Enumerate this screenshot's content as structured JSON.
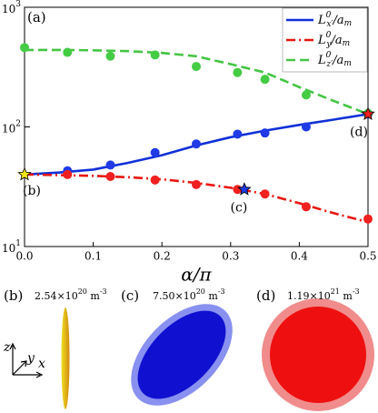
{
  "chart_data": {
    "type": "line",
    "panel_label": "(a)",
    "xlabel": "α/π",
    "xlim": [
      0,
      0.5
    ],
    "xticks": [
      {
        "value": 0,
        "label": "0.0"
      },
      0.1,
      0.2,
      0.3,
      0.4,
      0.5
    ],
    "ylim": [
      10,
      1000
    ],
    "yticks": [
      {
        "value": 10,
        "label": "10",
        "exp": "1"
      },
      {
        "value": 100,
        "label": "10",
        "exp": "2"
      },
      {
        "value": 1000,
        "label": "10",
        "exp": "3"
      }
    ],
    "log_y": true,
    "legend": "upper right",
    "series": [
      {
        "name": [
          "L",
          "0",
          "x′",
          "/a",
          "m"
        ],
        "color": "#1030d8",
        "marker_color": "#1f3ae6",
        "dash": "solid",
        "x": [
          0,
          0.05,
          0.1,
          0.15,
          0.2,
          0.25,
          0.3,
          0.35,
          0.4,
          0.45,
          0.5
        ],
        "values": [
          40,
          41.5,
          44,
          50,
          58,
          70,
          82,
          93,
          104,
          115,
          128
        ],
        "marker_x": [
          0.0625,
          0.125,
          0.19,
          0.25,
          0.31,
          0.35,
          0.41,
          0.5
        ],
        "marker_values": [
          43,
          48,
          61,
          72,
          87,
          89,
          100,
          128
        ]
      },
      {
        "name": [
          "L",
          "0",
          "y",
          "/a",
          "m"
        ],
        "color": "#e8150f",
        "marker_color": "#f02020",
        "dash": "dashdot",
        "x": [
          0,
          0.05,
          0.1,
          0.15,
          0.2,
          0.25,
          0.3,
          0.35,
          0.4,
          0.45,
          0.5
        ],
        "values": [
          40,
          39.5,
          39,
          38,
          36.5,
          34,
          31,
          27.5,
          23,
          19,
          16
        ],
        "marker_x": [
          0.0625,
          0.125,
          0.19,
          0.25,
          0.31,
          0.35,
          0.41,
          0.5
        ],
        "marker_values": [
          40,
          38.5,
          36,
          33,
          30,
          27.5,
          21.5,
          17
        ]
      },
      {
        "name": [
          "L",
          "0",
          "z′",
          "/a",
          "m"
        ],
        "color": "#44c544",
        "marker_color": "#44cc44",
        "dash": "dashed",
        "x": [
          0,
          0.05,
          0.1,
          0.15,
          0.2,
          0.25,
          0.3,
          0.35,
          0.4,
          0.45,
          0.5
        ],
        "values": [
          440,
          440,
          437,
          430,
          415,
          390,
          335,
          285,
          215,
          165,
          128
        ],
        "marker_x": [
          0,
          0.0625,
          0.125,
          0.19,
          0.25,
          0.31,
          0.35,
          0.41,
          0.5
        ],
        "marker_values": [
          460,
          420,
          390,
          400,
          320,
          285,
          250,
          185,
          130
        ]
      }
    ],
    "stars": [
      {
        "label": "(b)",
        "x": 0,
        "value": 40,
        "color": "#f5e61a"
      },
      {
        "label": "(c)",
        "x": 0.32,
        "value": 30,
        "color": "#1f3ae6"
      },
      {
        "label": "(d)",
        "x": 0.5,
        "value": 128,
        "color": "#f02020"
      }
    ]
  },
  "shapes": [
    {
      "label": "(b)",
      "density": "2.54×10",
      "exp": "20",
      "unit": " m",
      "unit_exp": "-3"
    },
    {
      "label": "(c)",
      "density": "7.50×10",
      "exp": "20",
      "unit": " m",
      "unit_exp": "-3"
    },
    {
      "label": "(d)",
      "density": "1.19×10",
      "exp": "21",
      "unit": " m",
      "unit_exp": "-3"
    }
  ],
  "axes_icon": {
    "z": "z",
    "y": "y",
    "x": "x"
  }
}
